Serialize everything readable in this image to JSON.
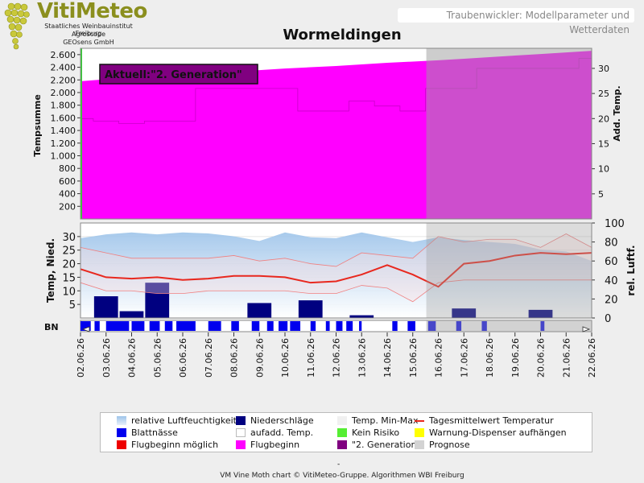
{
  "header": {
    "logo_title": "VitiMeteo",
    "logo_lines": [
      "Staatliches Weinbauinstitut Freiburg",
      "Agroscope",
      "GEOsens GmbH"
    ],
    "subtitle": "Traubenwickler: Modellparameter und Wetterdaten",
    "title": "Wormeldingen"
  },
  "colors": {
    "flugbeginn": "#ff00ff",
    "generation2": "#800080",
    "prognose": "#d3d3d3",
    "luftfeuchte": "#aaccee",
    "niederschlag": "#000080",
    "tagesmittel": "#e8281e",
    "blattnaesse": "#0000ee"
  },
  "chart_data": {
    "type": "area",
    "x": [
      "02.06.26",
      "03.06.26",
      "04.06.26",
      "05.06.26",
      "06.06.26",
      "07.06.26",
      "08.06.26",
      "09.06.26",
      "10.06.26",
      "11.06.26",
      "12.06.26",
      "13.06.26",
      "14.06.26",
      "15.06.26",
      "16.06.26",
      "17.06.26",
      "18.06.26",
      "19.06.26",
      "20.06.26",
      "21.06.26",
      "22.06.26"
    ],
    "prognose_start": "16.06.26",
    "top_panel": {
      "annotation": "Aktuell:\"2. Generation\"",
      "ylabel_left": "Tempsumme",
      "ylabel_right": "Add. Temp.",
      "left_ticks": [
        "200",
        "400",
        "600",
        "800",
        "1.000",
        "1.200",
        "1.400",
        "1.600",
        "1.800",
        "2.000",
        "2.200",
        "2.400",
        "2.600"
      ],
      "right_ticks": [
        "5",
        "10",
        "15",
        "20",
        "25",
        "30"
      ],
      "ylim_left": [
        0,
        2700
      ],
      "ylim_right": [
        0,
        34
      ],
      "tempsumme": [
        2180,
        2210,
        2240,
        2270,
        2300,
        2315,
        2330,
        2355,
        2380,
        2400,
        2420,
        2445,
        2470,
        2490,
        2510,
        2535,
        2560,
        2585,
        2610,
        2635,
        2660
      ],
      "add_temp": [
        20,
        19.5,
        19,
        19.5,
        19.5,
        26,
        26,
        26,
        26,
        21.5,
        21.5,
        23.5,
        22.5,
        21.5,
        26,
        26,
        30,
        30,
        30,
        30,
        32
      ]
    },
    "bottom_panel": {
      "ylabel_left": "Temp, Nied.",
      "ylabel_right": "rel. Luftf.",
      "left_ticks": [
        "5",
        "10",
        "15",
        "20",
        "25",
        "30"
      ],
      "right_ticks": [
        "0",
        "20",
        "40",
        "60",
        "80",
        "100"
      ],
      "ylim_left": [
        0,
        35
      ],
      "ylim_right": [
        0,
        100
      ],
      "series": [
        {
          "name": "relative Luftfeuchtigkeit",
          "values": [
            84,
            88,
            90,
            88,
            90,
            89,
            86,
            81,
            90,
            85,
            84,
            90,
            85,
            80,
            85,
            82,
            80,
            78,
            72,
            70,
            60
          ]
        },
        {
          "name": "Niederschläge",
          "values": [
            0,
            8,
            2.5,
            13,
            0,
            0,
            0,
            5.5,
            0,
            6.5,
            0,
            1,
            0,
            0,
            0,
            3.5,
            0,
            0,
            3,
            0,
            0
          ]
        },
        {
          "name": "Temp. Max",
          "values": [
            26,
            24,
            22,
            22,
            22,
            22,
            23,
            21,
            22,
            20,
            19,
            24,
            23,
            22,
            30,
            28,
            29,
            29,
            26,
            31,
            26
          ]
        },
        {
          "name": "Temp. Min",
          "values": [
            13,
            10,
            10,
            9,
            9,
            10,
            10,
            10,
            10,
            9,
            9,
            12,
            11,
            6,
            13,
            14,
            14,
            14,
            14,
            14,
            14
          ]
        },
        {
          "name": "Tagesmittelwert Temperatur",
          "values": [
            18,
            15,
            14.5,
            15,
            14,
            14.5,
            15.5,
            15.5,
            15,
            13,
            13.5,
            16,
            19.5,
            16,
            11.5,
            20,
            21,
            23,
            24,
            23.5,
            24
          ]
        }
      ]
    },
    "bn_label": "BN",
    "blattnaesse_intervals": [
      [
        0.0,
        0.4
      ],
      [
        0.55,
        0.75
      ],
      [
        1.0,
        1.9
      ],
      [
        2.0,
        2.5
      ],
      [
        2.7,
        3.1
      ],
      [
        3.3,
        3.6
      ],
      [
        3.75,
        4.5
      ],
      [
        5.0,
        5.5
      ],
      [
        5.9,
        6.2
      ],
      [
        6.7,
        7.0
      ],
      [
        7.3,
        7.55
      ],
      [
        7.75,
        8.1
      ],
      [
        8.2,
        8.6
      ],
      [
        9.0,
        9.2
      ],
      [
        9.6,
        9.75
      ],
      [
        10.0,
        10.25
      ],
      [
        10.4,
        10.65
      ],
      [
        10.9,
        11.0
      ],
      [
        12.2,
        12.4
      ],
      [
        12.8,
        13.1
      ],
      [
        13.6,
        13.9
      ],
      [
        14.7,
        14.9
      ],
      [
        15.7,
        15.9
      ],
      [
        18.0,
        18.15
      ]
    ],
    "legend": [
      {
        "label": "relative Luftfeuchtigkeit",
        "swatch": "gradient"
      },
      {
        "label": "Niederschläge",
        "swatch": "#000080"
      },
      {
        "label": "Temp. Min-Max",
        "swatch": "#f0f0f0"
      },
      {
        "label": "Tagesmittelwert Temperatur",
        "swatch": "line"
      },
      {
        "label": "Blattnässe",
        "swatch": "#0000ee"
      },
      {
        "label": "aufadd. Temp.",
        "swatch": "outline"
      },
      {
        "label": "Kein Risiko",
        "swatch": "#55ee33"
      },
      {
        "label": "Warnung-Dispenser aufhängen",
        "swatch": "#ffff00"
      },
      {
        "label": "Flugbeginn möglich",
        "swatch": "#ee0000"
      },
      {
        "label": "Flugbeginn",
        "swatch": "#ff00ff"
      },
      {
        "label": "\"2. Generation\"",
        "swatch": "#800080"
      },
      {
        "label": "Prognose",
        "swatch": "#d3d3d3"
      }
    ]
  },
  "footer": {
    "dash": "-",
    "credit": "VM Vine Moth chart © VitiMeteo-Gruppe. Algorithmen WBI Freiburg"
  }
}
